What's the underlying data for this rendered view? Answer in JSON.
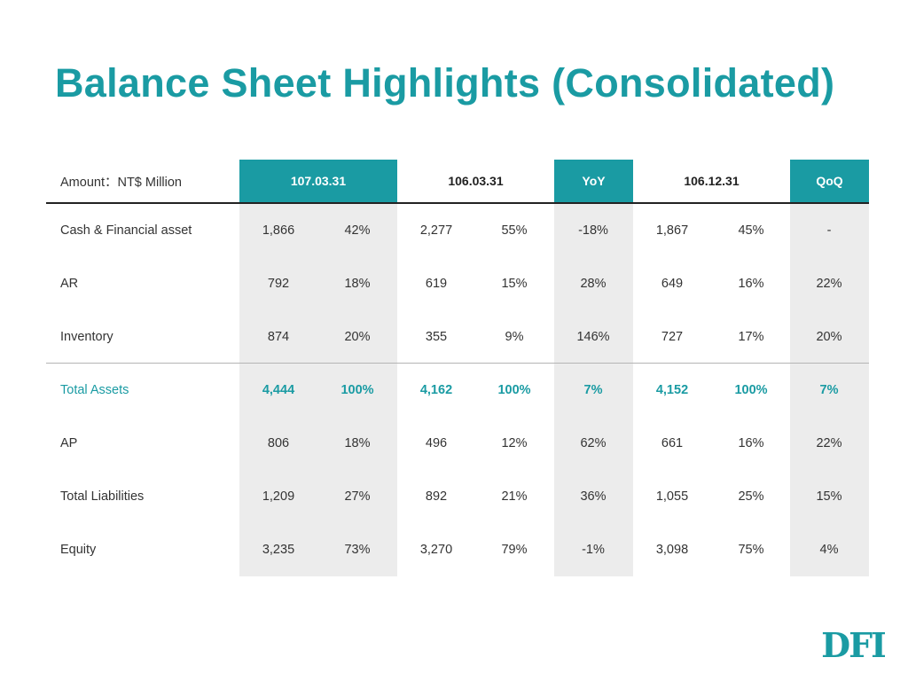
{
  "title": "Balance Sheet Highlights (Consolidated)",
  "header": {
    "amount_label": "Amount：NT$ Million",
    "periods": [
      "107.03.31",
      "106.03.31",
      "YoY",
      "106.12.31",
      "QoQ"
    ]
  },
  "rows": [
    {
      "label": "Cash & Financial asset",
      "values": [
        "1,866",
        "42%",
        "2,277",
        "55%",
        "-18%",
        "1,867",
        "45%",
        "-"
      ]
    },
    {
      "label": "AR",
      "values": [
        "792",
        "18%",
        "619",
        "15%",
        "28%",
        "649",
        "16%",
        "22%"
      ]
    },
    {
      "label": "Inventory",
      "values": [
        "874",
        "20%",
        "355",
        "9%",
        "146%",
        "727",
        "17%",
        "20%"
      ]
    },
    {
      "label": "Total Assets",
      "values": [
        "4,444",
        "100%",
        "4,162",
        "100%",
        "7%",
        "4,152",
        "100%",
        "7%"
      ]
    },
    {
      "label": "AP",
      "values": [
        "806",
        "18%",
        "496",
        "12%",
        "62%",
        "661",
        "16%",
        "22%"
      ]
    },
    {
      "label": "Total Liabilities",
      "values": [
        "1,209",
        "27%",
        "892",
        "21%",
        "36%",
        "1,055",
        "25%",
        "15%"
      ]
    },
    {
      "label": "Equity",
      "values": [
        "3,235",
        "73%",
        "3,270",
        "79%",
        "-1%",
        "3,098",
        "75%",
        "4%"
      ]
    }
  ],
  "logo": {
    "text": "DFI",
    "color": "#1a9ba3"
  },
  "colors": {
    "accent": "#1a9ba3",
    "shade": "#ececec"
  }
}
